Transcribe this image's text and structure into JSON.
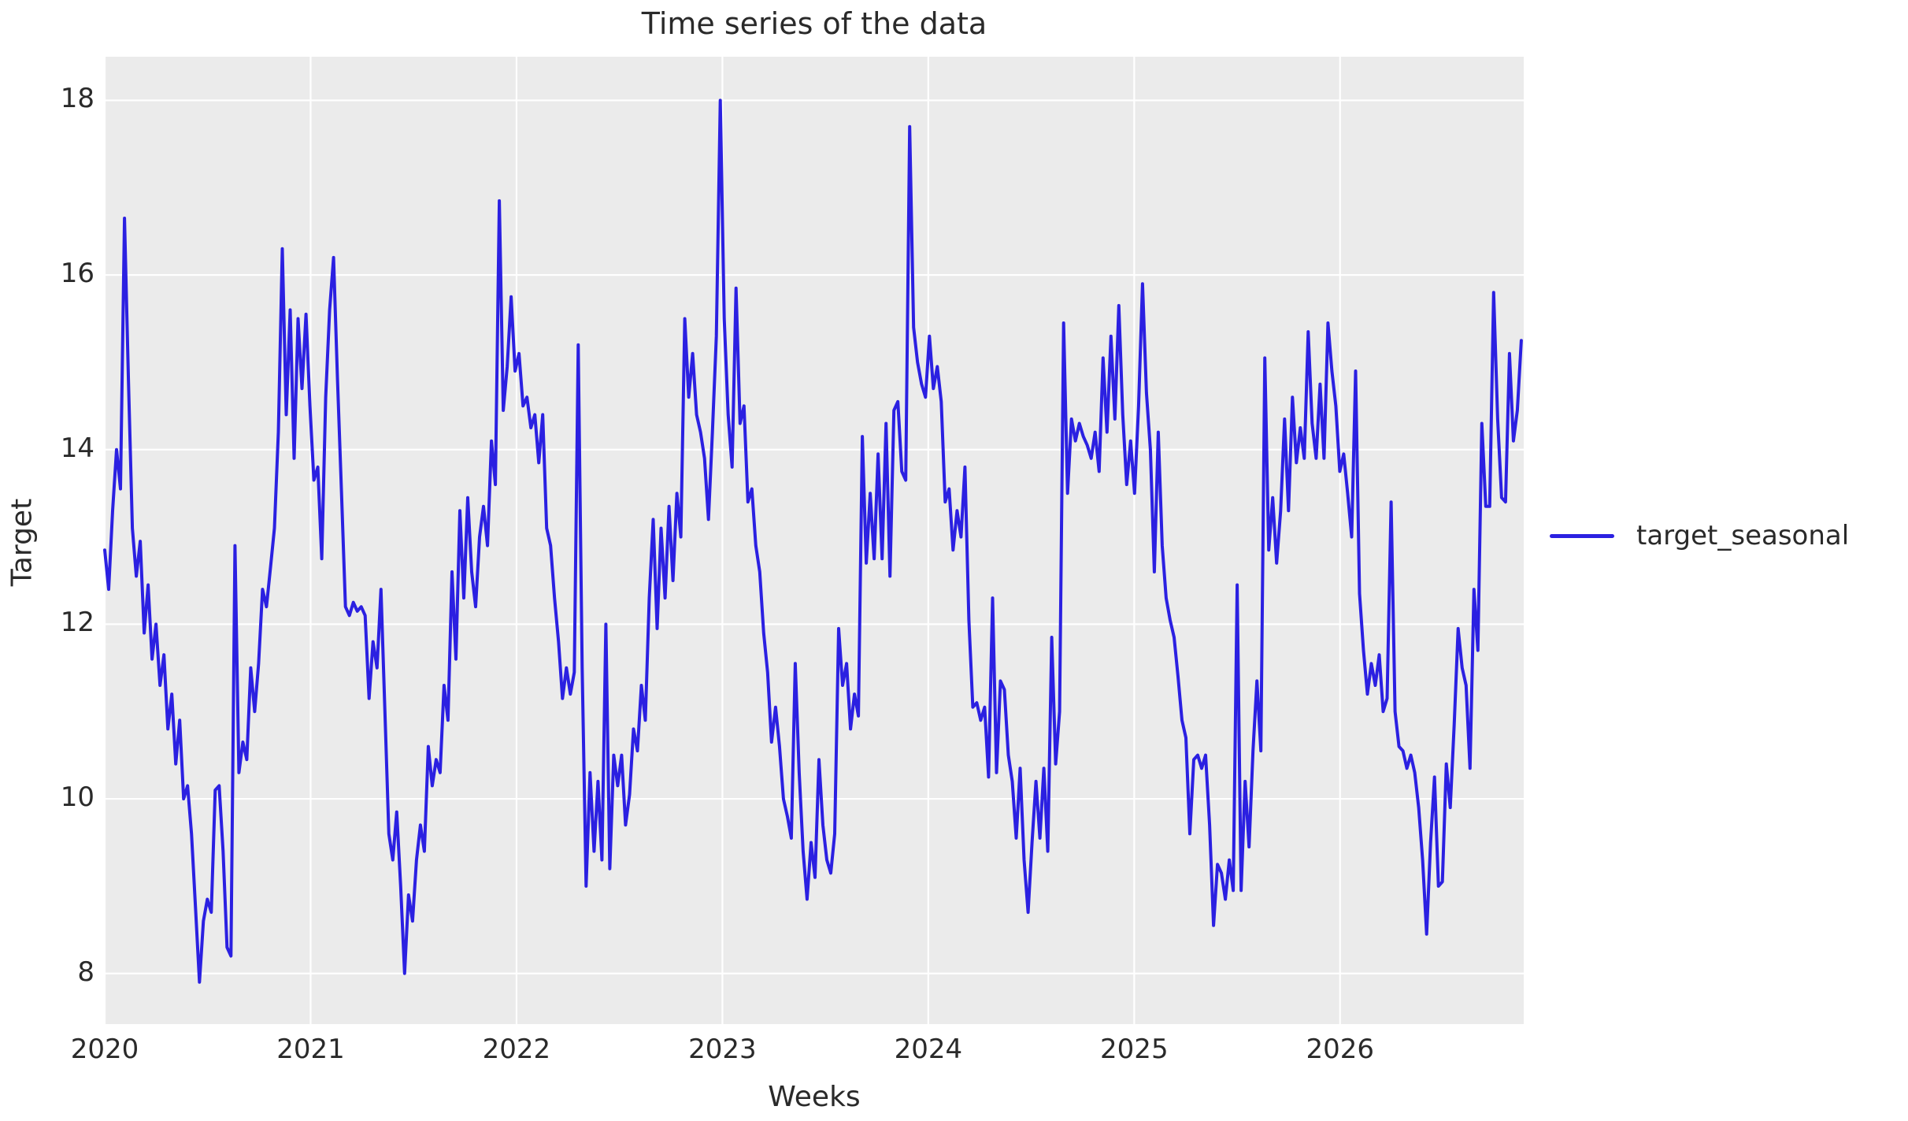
{
  "chart": {
    "title": "Time series of the data",
    "xlabel": "Weeks",
    "ylabel": "Target",
    "legend_label": "target_seasonal"
  },
  "colors": {
    "line": "#2b20e1",
    "plot_background": "#ebebeb",
    "gridline": "#ffffff",
    "text": "#2a2a2a",
    "figure_background": "#ffffff"
  },
  "chart_data": {
    "type": "line",
    "title": "Time series of the data",
    "xlabel": "Weeks",
    "ylabel": "Target",
    "legend": {
      "label": "target_seasonal",
      "position": "right-outside"
    },
    "grid": true,
    "x_axis": {
      "unit": "years",
      "start": 2020,
      "step_per_point_weeks": 1,
      "ticks": [
        2020,
        2021,
        2022,
        2023,
        2024,
        2025,
        2026
      ],
      "xlim": [
        2020,
        2026.892
      ]
    },
    "y_axis": {
      "ticks": [
        8,
        10,
        12,
        14,
        16,
        18
      ],
      "ylim": [
        7.42,
        18.5
      ]
    },
    "series": [
      {
        "name": "target_seasonal",
        "color": "#2b20e1",
        "values": [
          12.85,
          12.4,
          13.3,
          14.0,
          13.55,
          16.65,
          14.8,
          13.1,
          12.55,
          12.95,
          11.9,
          12.45,
          11.6,
          12.0,
          11.3,
          11.65,
          10.8,
          11.2,
          10.4,
          10.9,
          10.0,
          10.15,
          9.6,
          8.75,
          7.9,
          8.6,
          8.85,
          8.7,
          10.1,
          10.15,
          9.4,
          8.3,
          8.2,
          12.9,
          10.3,
          10.65,
          10.45,
          11.5,
          11.0,
          11.55,
          12.4,
          12.2,
          12.65,
          13.1,
          14.2,
          16.3,
          14.4,
          15.6,
          13.9,
          15.5,
          14.7,
          15.55,
          14.5,
          13.65,
          13.8,
          12.75,
          14.6,
          15.6,
          16.2,
          14.8,
          13.5,
          12.2,
          12.1,
          12.25,
          12.15,
          12.2,
          12.1,
          11.15,
          11.8,
          11.5,
          12.4,
          11.0,
          9.6,
          9.3,
          9.85,
          9.0,
          8.0,
          8.9,
          8.6,
          9.3,
          9.7,
          9.4,
          10.6,
          10.15,
          10.45,
          10.3,
          11.3,
          10.9,
          12.6,
          11.6,
          13.3,
          12.3,
          13.45,
          12.6,
          12.2,
          13.0,
          13.35,
          12.9,
          14.1,
          13.6,
          16.85,
          14.45,
          14.95,
          15.75,
          14.9,
          15.1,
          14.5,
          14.6,
          14.25,
          14.4,
          13.85,
          14.4,
          13.1,
          12.9,
          12.3,
          11.8,
          11.15,
          11.5,
          11.2,
          11.45,
          15.2,
          11.5,
          9.0,
          10.3,
          9.4,
          10.2,
          9.3,
          12.0,
          9.2,
          10.5,
          10.15,
          10.5,
          9.7,
          10.05,
          10.8,
          10.55,
          11.3,
          10.9,
          12.3,
          13.2,
          11.95,
          13.1,
          12.3,
          13.35,
          12.5,
          13.5,
          13.0,
          15.5,
          14.6,
          15.1,
          14.4,
          14.2,
          13.9,
          13.2,
          14.2,
          15.3,
          18.0,
          15.5,
          14.4,
          13.8,
          15.85,
          14.3,
          14.5,
          13.4,
          13.55,
          12.9,
          12.6,
          11.9,
          11.45,
          10.65,
          11.05,
          10.6,
          10.0,
          9.8,
          9.55,
          11.55,
          10.3,
          9.4,
          8.85,
          9.5,
          9.1,
          10.45,
          9.7,
          9.3,
          9.15,
          9.6,
          11.95,
          11.3,
          11.55,
          10.8,
          11.2,
          10.95,
          14.15,
          12.7,
          13.5,
          12.75,
          13.95,
          12.75,
          14.3,
          12.55,
          14.45,
          14.55,
          13.75,
          13.65,
          17.7,
          15.4,
          15.0,
          14.75,
          14.6,
          15.3,
          14.7,
          14.95,
          14.55,
          13.4,
          13.55,
          12.85,
          13.3,
          13.0,
          13.8,
          12.05,
          11.05,
          11.1,
          10.9,
          11.05,
          10.25,
          12.3,
          10.3,
          11.35,
          11.25,
          10.5,
          10.2,
          9.55,
          10.35,
          9.3,
          8.7,
          9.5,
          10.2,
          9.55,
          10.35,
          9.4,
          11.85,
          10.4,
          11.0,
          15.45,
          13.5,
          14.35,
          14.1,
          14.3,
          14.15,
          14.05,
          13.9,
          14.2,
          13.75,
          15.05,
          14.2,
          15.3,
          14.35,
          15.65,
          14.4,
          13.6,
          14.1,
          13.5,
          14.5,
          15.9,
          14.65,
          14.0,
          12.6,
          14.2,
          12.9,
          12.3,
          12.05,
          11.85,
          11.4,
          10.9,
          10.7,
          9.6,
          10.45,
          10.5,
          10.35,
          10.5,
          9.7,
          8.55,
          9.25,
          9.15,
          8.85,
          9.3,
          8.95,
          12.45,
          8.95,
          10.2,
          9.45,
          10.55,
          11.35,
          10.55,
          15.05,
          12.85,
          13.45,
          12.7,
          13.3,
          14.35,
          13.3,
          14.6,
          13.85,
          14.25,
          13.9,
          15.35,
          14.3,
          13.9,
          14.75,
          13.9,
          15.45,
          14.9,
          14.5,
          13.75,
          13.95,
          13.5,
          13.0,
          14.9,
          12.35,
          11.7,
          11.2,
          11.55,
          11.3,
          11.65,
          11.0,
          11.15,
          13.4,
          11.0,
          10.6,
          10.55,
          10.35,
          10.5,
          10.3,
          9.9,
          9.3,
          8.45,
          9.5,
          10.25,
          9.0,
          9.05,
          10.4,
          9.9,
          10.85,
          11.95,
          11.5,
          11.3,
          10.35,
          12.4,
          11.7,
          14.3,
          13.35,
          13.35,
          15.8,
          14.35,
          13.45,
          13.4,
          15.1,
          14.1,
          14.45,
          15.25
        ]
      }
    ]
  }
}
